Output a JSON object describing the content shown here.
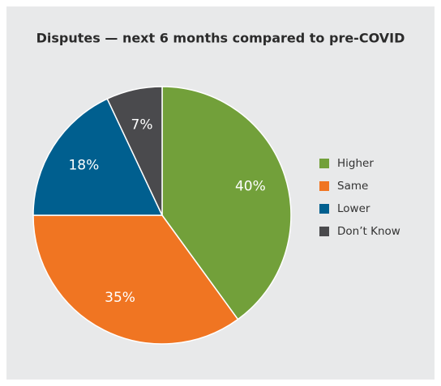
{
  "chart_data": {
    "type": "pie",
    "title": "Disputes — next 6 months compared to pre-COVID",
    "categories": [
      "Higher",
      "Same",
      "Lower",
      "Don’t Know"
    ],
    "values": [
      40,
      35,
      18,
      7
    ],
    "value_labels": [
      "40%",
      "35%",
      "18%",
      "7%"
    ],
    "colors": [
      "#72a03a",
      "#f07522",
      "#005f8f",
      "#4a4a4d"
    ],
    "legend": "right"
  }
}
